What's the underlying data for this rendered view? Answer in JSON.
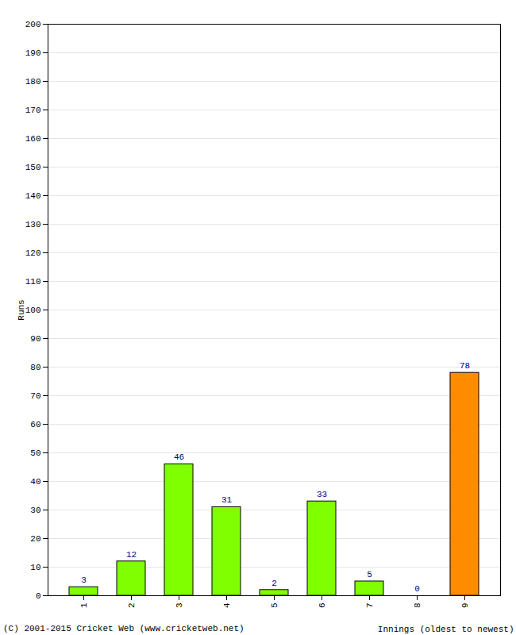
{
  "chart_data": {
    "type": "bar",
    "x_label": "Innings (oldest to newest)",
    "y_label": "Runs",
    "caption": "(C) 2001-2015 Cricket Web (www.cricketweb.net)",
    "categories": [
      "1",
      "2",
      "3",
      "4",
      "5",
      "6",
      "7",
      "8",
      "9"
    ],
    "values": [
      3,
      12,
      46,
      31,
      2,
      33,
      5,
      0,
      78
    ],
    "colors": [
      "#80ff00",
      "#80ff00",
      "#80ff00",
      "#80ff00",
      "#80ff00",
      "#80ff00",
      "#80ff00",
      "#80ff00",
      "#ff8c00"
    ],
    "ylim": [
      0,
      200
    ],
    "yticks": [
      0,
      10,
      20,
      30,
      40,
      50,
      60,
      70,
      80,
      90,
      100,
      110,
      120,
      130,
      140,
      150,
      160,
      170,
      180,
      190,
      200
    ],
    "grid": true,
    "data_labels": true
  }
}
